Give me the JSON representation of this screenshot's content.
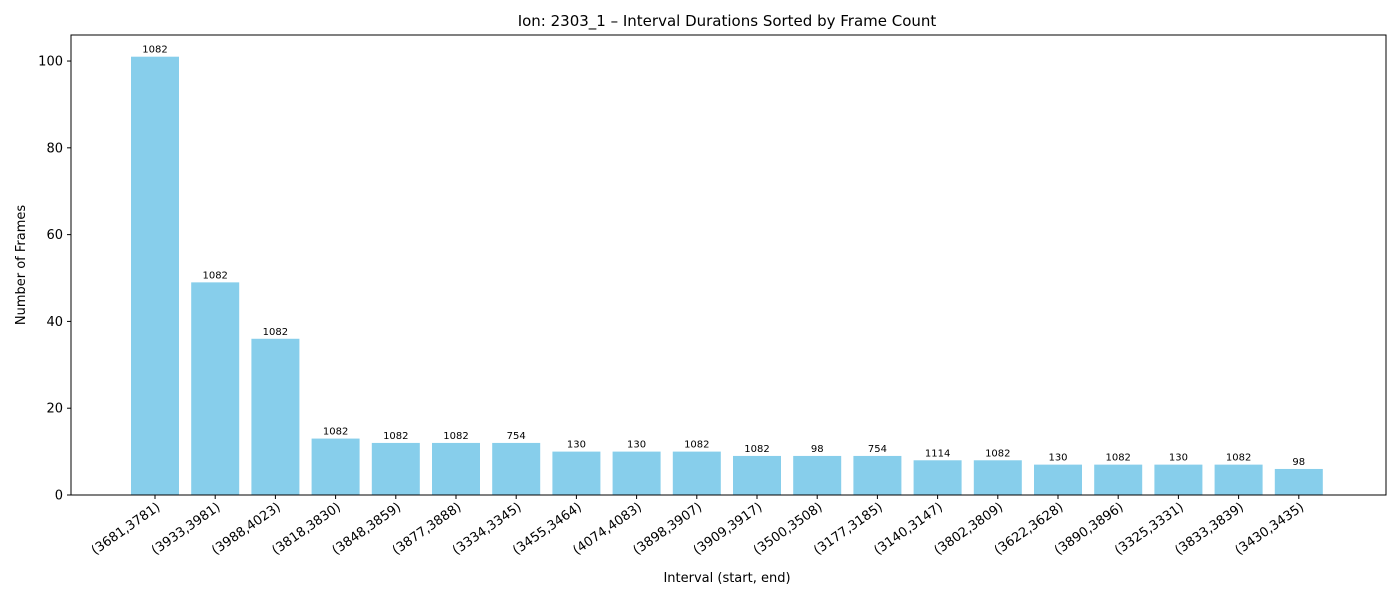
{
  "chart_data": {
    "type": "bar",
    "title": "Ion: 2303_1 – Interval Durations Sorted by Frame Count",
    "xlabel": "Interval (start, end)",
    "ylabel": "Number of Frames",
    "ylim": [
      0,
      106
    ],
    "yticks": [
      0,
      20,
      40,
      60,
      80,
      100
    ],
    "grid": false,
    "bar_color": "#87CEEB",
    "categories": [
      "(3681,3781)",
      "(3933,3981)",
      "(3988,4023)",
      "(3818,3830)",
      "(3848,3859)",
      "(3877,3888)",
      "(3334,3345)",
      "(3455,3464)",
      "(4074,4083)",
      "(3898,3907)",
      "(3909,3917)",
      "(3500,3508)",
      "(3177,3185)",
      "(3140,3147)",
      "(3802,3809)",
      "(3622,3628)",
      "(3890,3896)",
      "(3325,3331)",
      "(3833,3839)",
      "(3430,3435)"
    ],
    "values": [
      101,
      49,
      36,
      13,
      12,
      12,
      12,
      10,
      10,
      10,
      9,
      9,
      9,
      8,
      8,
      7,
      7,
      7,
      7,
      6
    ],
    "bar_labels": [
      "1082",
      "1082",
      "1082",
      "1082",
      "1082",
      "1082",
      "754",
      "130",
      "130",
      "1082",
      "1082",
      "98",
      "754",
      "1114",
      "1082",
      "130",
      "1082",
      "130",
      "1082",
      "98"
    ]
  }
}
